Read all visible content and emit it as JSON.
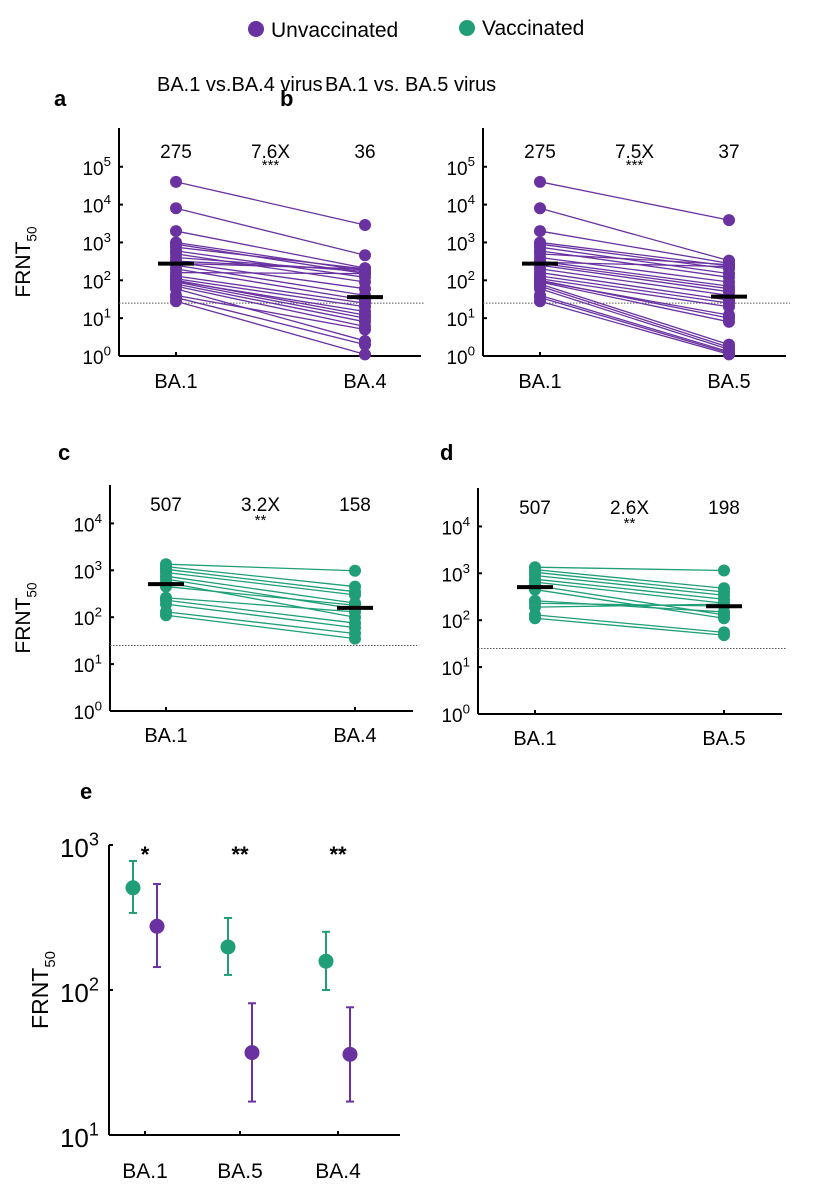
{
  "legend": {
    "items": [
      {
        "label": "Unvaccinated",
        "color": "#6a32a0"
      },
      {
        "label": "Vaccinated",
        "color": "#1f9e78"
      }
    ]
  },
  "colors": {
    "unvaccinated": "#6a32a0",
    "vaccinated": "#1f9e78",
    "median_bar": "#000000",
    "threshold_line": "#555555"
  },
  "chart_data": [
    {
      "id": "a",
      "panel_label": "a",
      "type": "scatter",
      "subtype": "paired-line",
      "title": "BA.1 vs.BA.4 virus",
      "ylabel": "FRNT50",
      "yscale": "log",
      "ylim": [
        1,
        100000
      ],
      "yticks": [
        1,
        10,
        100,
        1000,
        10000,
        100000
      ],
      "ytick_labels": [
        "10^0",
        "10^1",
        "10^2",
        "10^3",
        "10^4",
        "10^5"
      ],
      "categories": [
        "BA.1",
        "BA.4"
      ],
      "group": "unvaccinated",
      "threshold": 25,
      "medians": [
        275,
        36
      ],
      "median_labels": [
        "275",
        "36"
      ],
      "fold_change": "7.6X",
      "significance": "***",
      "pairs": [
        [
          40000,
          2900
        ],
        [
          8000,
          460
        ],
        [
          2000,
          210
        ],
        [
          1000,
          180
        ],
        [
          900,
          150
        ],
        [
          750,
          200
        ],
        [
          600,
          120
        ],
        [
          500,
          90
        ],
        [
          400,
          170
        ],
        [
          320,
          190
        ],
        [
          300,
          60
        ],
        [
          280,
          200
        ],
        [
          250,
          40
        ],
        [
          200,
          30
        ],
        [
          160,
          150
        ],
        [
          130,
          25
        ],
        [
          110,
          20
        ],
        [
          100,
          12
        ],
        [
          95,
          15
        ],
        [
          90,
          10
        ],
        [
          80,
          8
        ],
        [
          70,
          6
        ],
        [
          60,
          2.5
        ],
        [
          40,
          5
        ],
        [
          35,
          2
        ],
        [
          28,
          1.1
        ]
      ]
    },
    {
      "id": "b",
      "panel_label": "b",
      "type": "scatter",
      "subtype": "paired-line",
      "title": "BA.1 vs. BA.5 virus",
      "ylabel": "",
      "yscale": "log",
      "ylim": [
        1,
        100000
      ],
      "yticks": [
        1,
        10,
        100,
        1000,
        10000,
        100000
      ],
      "ytick_labels": [
        "10^0",
        "10^1",
        "10^2",
        "10^3",
        "10^4",
        "10^5"
      ],
      "categories": [
        "BA.1",
        "BA.5"
      ],
      "group": "unvaccinated",
      "threshold": 25,
      "medians": [
        275,
        37
      ],
      "median_labels": [
        "275",
        "37"
      ],
      "fold_change": "7.5X",
      "significance": "***",
      "pairs": [
        [
          40000,
          3900
        ],
        [
          8000,
          330
        ],
        [
          2000,
          280
        ],
        [
          1000,
          240
        ],
        [
          900,
          200
        ],
        [
          750,
          150
        ],
        [
          600,
          120
        ],
        [
          500,
          260
        ],
        [
          400,
          90
        ],
        [
          320,
          70
        ],
        [
          300,
          230
        ],
        [
          280,
          60
        ],
        [
          250,
          50
        ],
        [
          200,
          40
        ],
        [
          160,
          30
        ],
        [
          130,
          25
        ],
        [
          110,
          20
        ],
        [
          100,
          10
        ],
        [
          95,
          12
        ],
        [
          90,
          8
        ],
        [
          80,
          2
        ],
        [
          70,
          1.7
        ],
        [
          60,
          1.5
        ],
        [
          40,
          1.3
        ],
        [
          35,
          1.2
        ],
        [
          28,
          1.1
        ]
      ]
    },
    {
      "id": "c",
      "panel_label": "c",
      "type": "scatter",
      "subtype": "paired-line",
      "title": "",
      "ylabel": "FRNT50",
      "yscale": "log",
      "ylim": [
        1,
        10000
      ],
      "yticks": [
        1,
        10,
        100,
        1000,
        10000
      ],
      "ytick_labels": [
        "10^0",
        "10^1",
        "10^2",
        "10^3",
        "10^4"
      ],
      "categories": [
        "BA.1",
        "BA.4"
      ],
      "group": "vaccinated",
      "threshold": 25,
      "medians": [
        507,
        158
      ],
      "median_labels": [
        "507",
        "158"
      ],
      "fold_change": "3.2X",
      "significance": "**",
      "pairs": [
        [
          1350,
          980
        ],
        [
          1200,
          450
        ],
        [
          1050,
          350
        ],
        [
          900,
          300
        ],
        [
          750,
          200
        ],
        [
          650,
          150
        ],
        [
          550,
          100
        ],
        [
          450,
          180
        ],
        [
          260,
          130
        ],
        [
          230,
          75
        ],
        [
          190,
          60
        ],
        [
          130,
          45
        ],
        [
          110,
          35
        ]
      ]
    },
    {
      "id": "d",
      "panel_label": "d",
      "type": "scatter",
      "subtype": "paired-line",
      "title": "",
      "ylabel": "",
      "yscale": "log",
      "ylim": [
        1,
        10000
      ],
      "yticks": [
        1,
        10,
        100,
        1000,
        10000
      ],
      "ytick_labels": [
        "10^0",
        "10^1",
        "10^2",
        "10^3",
        "10^4"
      ],
      "categories": [
        "BA.1",
        "BA.5"
      ],
      "group": "vaccinated",
      "threshold": 25,
      "medians": [
        507,
        198
      ],
      "median_labels": [
        "507",
        "198"
      ],
      "fold_change": "2.6X",
      "significance": "**",
      "pairs": [
        [
          1350,
          1150
        ],
        [
          1200,
          480
        ],
        [
          1050,
          400
        ],
        [
          900,
          340
        ],
        [
          750,
          280
        ],
        [
          650,
          230
        ],
        [
          550,
          130
        ],
        [
          450,
          110
        ],
        [
          260,
          150
        ],
        [
          230,
          200
        ],
        [
          190,
          220
        ],
        [
          130,
          55
        ],
        [
          110,
          48
        ]
      ]
    },
    {
      "id": "e",
      "panel_label": "e",
      "type": "scatter",
      "subtype": "errorbar",
      "title": "",
      "ylabel": "FRNT50",
      "yscale": "log",
      "ylim": [
        10,
        1000
      ],
      "yticks": [
        10,
        100,
        1000
      ],
      "ytick_labels": [
        "10^1",
        "10^2",
        "10^3"
      ],
      "categories": [
        "BA.1",
        "BA.5",
        "BA.4"
      ],
      "significance": [
        "*",
        "**",
        "**"
      ],
      "series": [
        {
          "name": "Vaccinated",
          "group": "vaccinated",
          "values": [
            507,
            198,
            158
          ],
          "lower": [
            340,
            127,
            100
          ],
          "upper": [
            776,
            314,
            252
          ]
        },
        {
          "name": "Unvaccinated",
          "group": "unvaccinated",
          "values": [
            275,
            37,
            36
          ],
          "lower": [
            144,
            17,
            17
          ],
          "upper": [
            538,
            81,
            76
          ]
        }
      ]
    }
  ]
}
